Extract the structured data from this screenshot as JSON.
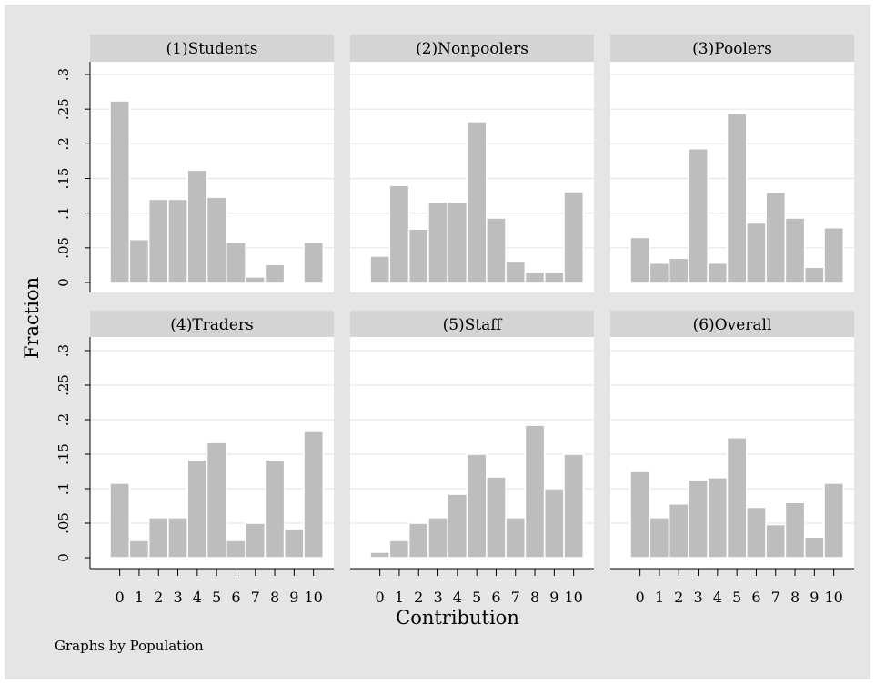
{
  "figure": {
    "ylabel": "Fraction",
    "xlabel": "Contribution",
    "note": "Graphs by Population",
    "bar_color": "#bdbdbd",
    "background_color": "#e5e5e5",
    "header_color": "#d4d4d4",
    "grid_color": "#e6e6e6"
  },
  "chart_data": [
    {
      "type": "bar",
      "title": "(1)Students",
      "categories": [
        "0",
        "1",
        "2",
        "3",
        "4",
        "5",
        "6",
        "7",
        "8",
        "9",
        "10"
      ],
      "values": [
        0.262,
        0.062,
        0.12,
        0.12,
        0.162,
        0.123,
        0.058,
        0.008,
        0.026,
        0.002,
        0.058
      ],
      "ylim": [
        0,
        0.3
      ],
      "yticks": [
        "0",
        ".05",
        ".1",
        ".15",
        ".2",
        ".25",
        ".3"
      ],
      "grid": true
    },
    {
      "type": "bar",
      "title": "(2)Nonpoolers",
      "categories": [
        "0",
        "1",
        "2",
        "3",
        "4",
        "5",
        "6",
        "7",
        "8",
        "9",
        "10"
      ],
      "values": [
        0.038,
        0.14,
        0.077,
        0.116,
        0.116,
        0.232,
        0.093,
        0.031,
        0.015,
        0.015,
        0.131
      ],
      "ylim": [
        0,
        0.3
      ],
      "yticks": [
        "0",
        ".05",
        ".1",
        ".15",
        ".2",
        ".25",
        ".3"
      ],
      "grid": true
    },
    {
      "type": "bar",
      "title": "(3)Poolers",
      "categories": [
        "0",
        "1",
        "2",
        "3",
        "4",
        "5",
        "6",
        "7",
        "8",
        "9",
        "10"
      ],
      "values": [
        0.065,
        0.028,
        0.035,
        0.193,
        0.028,
        0.244,
        0.086,
        0.13,
        0.093,
        0.022,
        0.079
      ],
      "ylim": [
        0,
        0.3
      ],
      "yticks": [
        "0",
        ".05",
        ".1",
        ".15",
        ".2",
        ".25",
        ".3"
      ],
      "grid": true
    },
    {
      "type": "bar",
      "title": "(4)Traders",
      "categories": [
        "0",
        "1",
        "2",
        "3",
        "4",
        "5",
        "6",
        "7",
        "8",
        "9",
        "10"
      ],
      "values": [
        0.108,
        0.025,
        0.058,
        0.058,
        0.142,
        0.167,
        0.025,
        0.05,
        0.142,
        0.042,
        0.183
      ],
      "ylim": [
        0,
        0.3
      ],
      "yticks": [
        "0",
        ".05",
        ".1",
        ".15",
        ".2",
        ".25",
        ".3"
      ],
      "grid": true
    },
    {
      "type": "bar",
      "title": "(5)Staff",
      "categories": [
        "0",
        "1",
        "2",
        "3",
        "4",
        "5",
        "6",
        "7",
        "8",
        "9",
        "10"
      ],
      "values": [
        0.008,
        0.025,
        0.05,
        0.058,
        0.092,
        0.15,
        0.117,
        0.058,
        0.192,
        0.1,
        0.15
      ],
      "ylim": [
        0,
        0.3
      ],
      "yticks": [
        "0",
        ".05",
        ".1",
        ".15",
        ".2",
        ".25",
        ".3"
      ],
      "grid": true
    },
    {
      "type": "bar",
      "title": "(6)Overall",
      "categories": [
        "0",
        "1",
        "2",
        "3",
        "4",
        "5",
        "6",
        "7",
        "8",
        "9",
        "10"
      ],
      "values": [
        0.125,
        0.058,
        0.078,
        0.113,
        0.116,
        0.174,
        0.073,
        0.048,
        0.08,
        0.03,
        0.108
      ],
      "ylim": [
        0,
        0.3
      ],
      "yticks": [
        "0",
        ".05",
        ".1",
        ".15",
        ".2",
        ".25",
        ".3"
      ],
      "grid": true
    }
  ]
}
